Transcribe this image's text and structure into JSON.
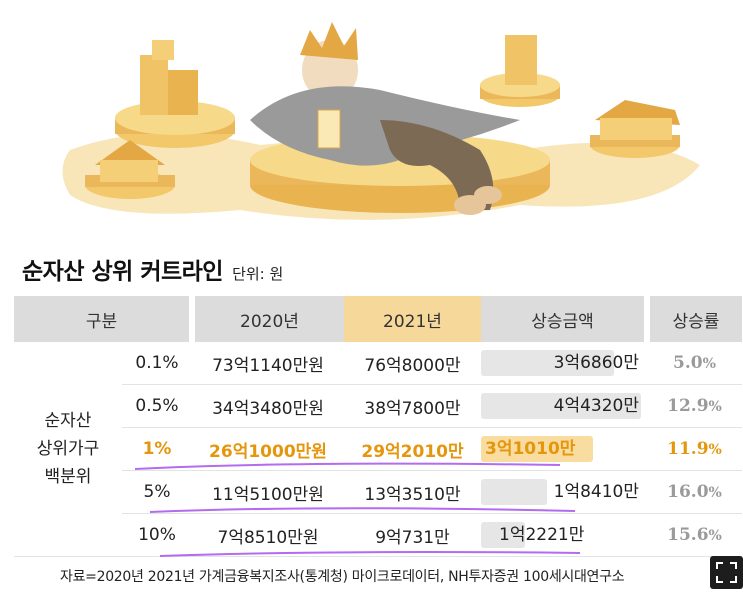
{
  "title": "순자산 상위 커트라인",
  "unit_label": "단위: 원",
  "header": {
    "group": "구분",
    "y2020": "2020년",
    "y2021": "2021년",
    "increase": "상승금액",
    "rate": "상승률"
  },
  "group_label": [
    "순자산",
    "상위가구",
    "백분위"
  ],
  "colors": {
    "highlight": "#e5960d",
    "highlight_bar": "#f9dca0",
    "header_bg": "#dcdcdc",
    "header_2021_bg": "#f6d89b",
    "pen": "#b36bf0"
  },
  "rows": [
    {
      "pct": "0.1%",
      "v2020": "73억1140만원",
      "v2021": "76억8000만",
      "increase": "3억6860만",
      "increase_num": 36860,
      "rate": "5.0",
      "rate_unit": "%"
    },
    {
      "pct": "0.5%",
      "v2020": "34억3480만원",
      "v2021": "38억7800만",
      "increase": "4억4320만",
      "increase_num": 44320,
      "rate": "12.9",
      "rate_unit": "%"
    },
    {
      "pct": "1%",
      "v2020": "26억1000만원",
      "v2021": "29억2010만",
      "increase": "3억1010만",
      "increase_num": 31010,
      "rate": "11.9",
      "rate_unit": "%"
    },
    {
      "pct": "5%",
      "v2020": "11억5100만원",
      "v2021": "13억3510만",
      "increase": "1억8410만",
      "increase_num": 18410,
      "rate": "16.0",
      "rate_unit": "%"
    },
    {
      "pct": "10%",
      "v2020": "7억8510만원",
      "v2021": "9억731만",
      "increase": "1억2221만",
      "increase_num": 12221,
      "rate": "15.6",
      "rate_unit": "%"
    }
  ],
  "source": "자료=2020년 2021년 가계금융복지조사(통계청) 마이크로데이터, NH투자증권 100세시대연구소",
  "expand_icon": "expand-icon",
  "chart_data": {
    "type": "table",
    "title": "순자산 상위 커트라인",
    "unit": "단위: 원",
    "columns": [
      "구분",
      "2020년",
      "2021년",
      "상승금액",
      "상승률"
    ],
    "categories": [
      "0.1%",
      "0.5%",
      "1%",
      "5%",
      "10%"
    ],
    "series": [
      {
        "name": "2020년",
        "values": [
          "73억1140만원",
          "34억3480만원",
          "26억1000만원",
          "11억5100만원",
          "7억8510만원"
        ]
      },
      {
        "name": "2021년",
        "values": [
          "76억8000만",
          "38억7800만",
          "29억2010만",
          "13억3510만",
          "9억731만"
        ]
      },
      {
        "name": "상승금액",
        "values": [
          "3억6860만",
          "4억4320만",
          "3억1010만",
          "1억8410만",
          "1억2221만"
        ]
      },
      {
        "name": "상승률",
        "values": [
          5.0,
          12.9,
          11.9,
          16.0,
          15.6
        ]
      }
    ],
    "highlight_row": "1%"
  }
}
